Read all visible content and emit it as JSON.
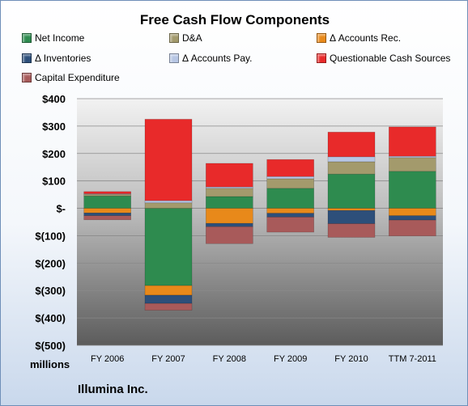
{
  "title": "Free Cash Flow Components",
  "units_label": "millions",
  "company_label": "Illumina Inc.",
  "legend": [
    {
      "name": "Net Income",
      "color": "#2e8b4f"
    },
    {
      "name": "D&A",
      "color": "#a39a6c"
    },
    {
      "name": "Δ Accounts Rec.",
      "color": "#e8891a"
    },
    {
      "name": "Δ Inventories",
      "color": "#2d4f7a"
    },
    {
      "name": "Δ Accounts Pay.",
      "color": "#b7c6e4"
    },
    {
      "name": "Questionable Cash Sources",
      "color": "#e82a2a"
    },
    {
      "name": "Capital Expenditure",
      "color": "#a85a5a"
    }
  ],
  "chart_data": {
    "type": "bar",
    "stacked": true,
    "categories": [
      "FY 2006",
      "FY 2007",
      "FY 2008",
      "FY 2009",
      "FY 2010",
      "TTM 7-2011"
    ],
    "ylim": [
      -500,
      400
    ],
    "yticks": [
      {
        "value": 400,
        "label": "$400"
      },
      {
        "value": 300,
        "label": "$300"
      },
      {
        "value": 200,
        "label": "$200"
      },
      {
        "value": 100,
        "label": "$100"
      },
      {
        "value": 0,
        "label": "$-"
      },
      {
        "value": -100,
        "label": "$(100)"
      },
      {
        "value": -200,
        "label": "$(200)"
      },
      {
        "value": -300,
        "label": "$(300)"
      },
      {
        "value": -400,
        "label": "$(400)"
      },
      {
        "value": -500,
        "label": "$(500)"
      }
    ],
    "grid": true,
    "legend_position": "top",
    "series": [
      {
        "name": "Net Income",
        "color": "#2e8b4f",
        "values": [
          45,
          -282,
          43,
          73,
          125,
          135
        ]
      },
      {
        "name": "D&A",
        "color": "#a39a6c",
        "values": [
          6,
          20,
          30,
          35,
          45,
          50
        ]
      },
      {
        "name": "Δ Accounts Rec.",
        "color": "#e8891a",
        "values": [
          -17,
          -35,
          -55,
          -18,
          -8,
          -27
        ]
      },
      {
        "name": "Δ Inventories",
        "color": "#2d4f7a",
        "values": [
          -10,
          -30,
          -12,
          -14,
          -48,
          -16
        ]
      },
      {
        "name": "Δ Accounts Pay.",
        "color": "#b7c6e4",
        "values": [
          2,
          8,
          5,
          8,
          18,
          5
        ]
      },
      {
        "name": "Questionable Cash Sources",
        "color": "#e82a2a",
        "values": [
          8,
          297,
          86,
          62,
          90,
          107
        ]
      },
      {
        "name": "Capital Expenditure",
        "color": "#a85a5a",
        "values": [
          -15,
          -25,
          -62,
          -55,
          -50,
          -58
        ]
      }
    ]
  }
}
